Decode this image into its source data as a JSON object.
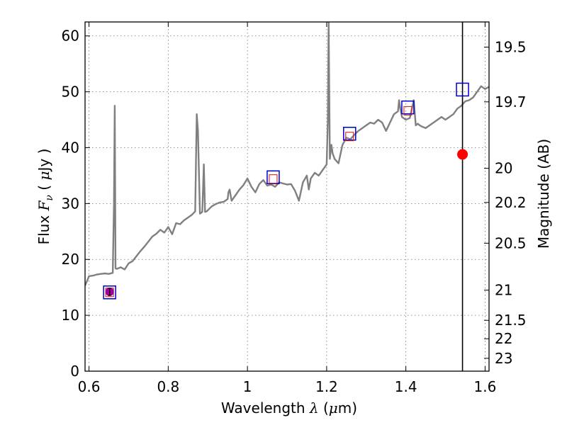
{
  "chart_data": {
    "type": "line",
    "title": "",
    "xlabel": "Wavelength  λ (μm)",
    "ylabel": "Flux  Fν  ( μJy )",
    "y2label": "Magnitude (AB)",
    "xlim": [
      0.59,
      1.61
    ],
    "ylim": [
      0,
      62.5
    ],
    "grid": true,
    "x_ticks": [
      0.6,
      0.8,
      1.0,
      1.2,
      1.4,
      1.6
    ],
    "x_tick_labels": [
      "0.6",
      "0.8",
      "1",
      "1.2",
      "1.4",
      "1.6"
    ],
    "y_ticks": [
      0,
      10,
      20,
      30,
      40,
      50,
      60
    ],
    "y_tick_labels": [
      "0",
      "10",
      "20",
      "30",
      "40",
      "50",
      "60"
    ],
    "y2_ticks": [
      {
        "label": "19.5",
        "flux": 58.0
      },
      {
        "label": "19.7",
        "flux": 48.2
      },
      {
        "label": "20",
        "flux": 36.3
      },
      {
        "label": "20.2",
        "flux": 30.2
      },
      {
        "label": "20.5",
        "flux": 22.9
      },
      {
        "label": "21",
        "flux": 14.5
      },
      {
        "label": "21.5",
        "flux": 9.1
      },
      {
        "label": "22",
        "flux": 5.8
      },
      {
        "label": "23",
        "flux": 2.3
      }
    ],
    "series": [
      {
        "kind": "spectrum",
        "color": "#808080",
        "x": [
          0.59,
          0.6,
          0.61,
          0.62,
          0.63,
          0.64,
          0.65,
          0.66,
          0.663,
          0.665,
          0.667,
          0.67,
          0.68,
          0.69,
          0.7,
          0.71,
          0.72,
          0.73,
          0.74,
          0.75,
          0.76,
          0.77,
          0.78,
          0.79,
          0.8,
          0.81,
          0.82,
          0.83,
          0.84,
          0.85,
          0.86,
          0.868,
          0.872,
          0.875,
          0.88,
          0.886,
          0.89,
          0.893,
          0.897,
          0.9,
          0.91,
          0.92,
          0.93,
          0.94,
          0.95,
          0.952,
          0.955,
          0.96,
          0.97,
          0.98,
          0.99,
          1.0,
          1.01,
          1.02,
          1.03,
          1.04,
          1.05,
          1.06,
          1.07,
          1.08,
          1.09,
          1.1,
          1.11,
          1.12,
          1.13,
          1.14,
          1.15,
          1.155,
          1.16,
          1.17,
          1.18,
          1.19,
          1.195,
          1.2,
          1.203,
          1.205,
          1.208,
          1.212,
          1.215,
          1.22,
          1.23,
          1.24,
          1.25,
          1.26,
          1.27,
          1.28,
          1.29,
          1.3,
          1.31,
          1.32,
          1.33,
          1.34,
          1.35,
          1.36,
          1.37,
          1.38,
          1.383,
          1.386,
          1.39,
          1.4,
          1.41,
          1.42,
          1.425,
          1.43,
          1.435,
          1.44,
          1.45,
          1.46,
          1.47,
          1.48,
          1.49,
          1.5,
          1.51,
          1.52,
          1.53,
          1.54,
          1.55,
          1.56,
          1.57,
          1.58,
          1.59,
          1.6,
          1.61
        ],
        "y": [
          15.3,
          17.0,
          17.1,
          17.3,
          17.4,
          17.5,
          17.4,
          17.6,
          30.0,
          47.5,
          18.4,
          18.3,
          18.6,
          18.2,
          19.3,
          19.7,
          20.6,
          21.5,
          22.3,
          23.2,
          24.1,
          24.6,
          25.3,
          24.8,
          25.8,
          24.5,
          26.5,
          26.3,
          27.0,
          27.5,
          28.0,
          28.6,
          46.0,
          43.0,
          28.2,
          28.5,
          37.0,
          28.5,
          28.6,
          28.8,
          29.5,
          29.9,
          30.2,
          30.3,
          30.8,
          32.0,
          32.5,
          30.5,
          31.5,
          32.5,
          33.3,
          34.5,
          33.0,
          32.0,
          33.5,
          34.2,
          33.2,
          33.4,
          33.0,
          33.8,
          33.6,
          33.4,
          33.5,
          32.3,
          30.5,
          33.8,
          35.0,
          32.5,
          34.5,
          35.5,
          35.0,
          36.0,
          36.5,
          37.0,
          45.0,
          62.5,
          38.0,
          40.5,
          39.0,
          38.0,
          37.2,
          40.5,
          41.8,
          41.5,
          42.3,
          43.0,
          43.5,
          44.0,
          44.5,
          44.3,
          45.0,
          44.5,
          43.0,
          44.5,
          46.0,
          46.5,
          48.5,
          47.0,
          45.5,
          45.0,
          45.3,
          48.5,
          44.0,
          44.3,
          44.0,
          43.8,
          43.5,
          44.0,
          44.5,
          45.0,
          45.5,
          45.0,
          45.5,
          46.0,
          47.0,
          47.5,
          48.3,
          48.5,
          49.0,
          50.0,
          51.0,
          50.5,
          50.9
        ]
      },
      {
        "kind": "model-photometry",
        "marker": "square-blue",
        "color": "#0000cc",
        "x": [
          0.652,
          1.065,
          1.258,
          1.405,
          1.543
        ],
        "y": [
          14.1,
          34.7,
          42.5,
          47.2,
          50.4
        ]
      },
      {
        "kind": "observed-photometry",
        "marker": "square-red",
        "color": "#dd2222",
        "x": [
          0.652,
          1.065,
          1.258,
          1.405
        ],
        "y": [
          14.1,
          34.4,
          42.0,
          46.6
        ]
      },
      {
        "kind": "observed-point",
        "marker": "circle-purple",
        "color": "#a000a0",
        "x": [
          0.652
        ],
        "y": [
          14.2
        ],
        "yerr": [
          0.6
        ]
      },
      {
        "kind": "red-point",
        "marker": "circle-red",
        "color": "#ff0000",
        "x": [
          1.543
        ],
        "y": [
          38.8
        ]
      }
    ],
    "vline": {
      "x": 1.543,
      "color": "#000000"
    }
  }
}
